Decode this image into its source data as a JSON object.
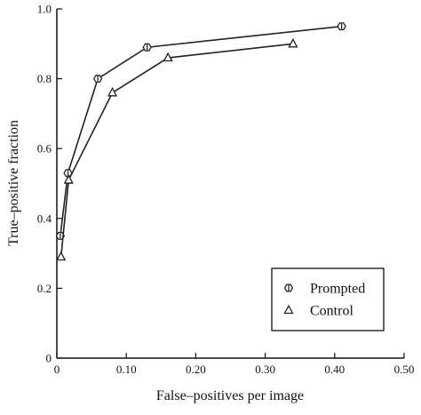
{
  "chart_data": {
    "type": "line",
    "xlabel": "False–positives per image",
    "ylabel": "True–positive fraction",
    "xlim": [
      0,
      0.5
    ],
    "ylim": [
      0,
      1.0
    ],
    "x_ticks": [
      "0",
      "0.10",
      "0.20",
      "0.30",
      "0.40",
      "0.50"
    ],
    "y_ticks": [
      "0",
      "0.2",
      "0.4",
      "0.6",
      "0.8",
      "1.0"
    ],
    "x_tick_values": [
      0,
      0.1,
      0.2,
      0.3,
      0.4,
      0.5
    ],
    "y_tick_values": [
      0,
      0.2,
      0.4,
      0.6,
      0.8,
      1.0
    ],
    "grid": false,
    "legend_position": "bottom-right",
    "series": [
      {
        "name": "Prompted",
        "marker": "hexagon",
        "x": [
          0.005,
          0.016,
          0.059,
          0.13,
          0.41
        ],
        "y": [
          0.35,
          0.53,
          0.8,
          0.89,
          0.95
        ]
      },
      {
        "name": "Control",
        "marker": "triangle",
        "x": [
          0.006,
          0.017,
          0.08,
          0.16,
          0.34
        ],
        "y": [
          0.29,
          0.51,
          0.76,
          0.86,
          0.9
        ]
      }
    ]
  }
}
